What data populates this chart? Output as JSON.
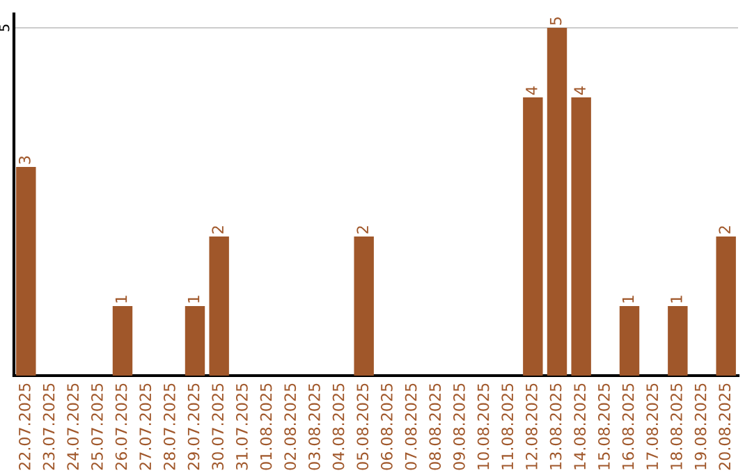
{
  "chart_data": {
    "type": "bar",
    "categories": [
      "22.07.2025",
      "23.07.2025",
      "24.07.2025",
      "25.07.2025",
      "26.07.2025",
      "27.07.2025",
      "28.07.2025",
      "29.07.2025",
      "30.07.2025",
      "31.07.2025",
      "01.08.2025",
      "02.08.2025",
      "03.08.2025",
      "04.08.2025",
      "05.08.2025",
      "06.08.2025",
      "07.08.2025",
      "08.08.2025",
      "09.08.2025",
      "10.08.2025",
      "11.08.2025",
      "12.08.2025",
      "13.08.2025",
      "14.08.2025",
      "15.08.2025",
      "16.08.2025",
      "17.08.2025",
      "18.08.2025",
      "19.08.2025",
      "20.08.2025"
    ],
    "values": [
      3,
      0,
      0,
      0,
      1,
      0,
      0,
      1,
      2,
      0,
      0,
      0,
      0,
      0,
      2,
      0,
      0,
      0,
      0,
      0,
      0,
      4,
      5,
      4,
      0,
      1,
      0,
      1,
      0,
      2
    ],
    "value_labels": [
      "3",
      null,
      null,
      null,
      "1",
      null,
      null,
      "1",
      "2",
      null,
      null,
      null,
      null,
      null,
      "2",
      null,
      null,
      null,
      null,
      null,
      null,
      "4",
      "5",
      "4",
      null,
      "1",
      null,
      "1",
      null,
      "2"
    ],
    "color": "#a0572a",
    "ylim": [
      0,
      5.2
    ],
    "yticks": [
      5
    ],
    "grid": "y"
  }
}
